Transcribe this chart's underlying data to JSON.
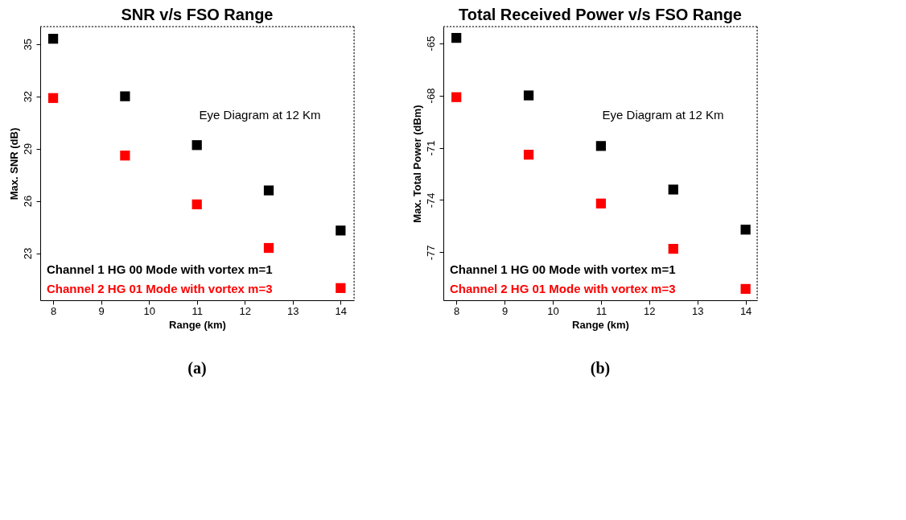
{
  "chart_data": [
    {
      "type": "scatter",
      "title": "SNR v/s FSO Range",
      "xlabel": "Range (km)",
      "ylabel": "Max. SNR (dB)",
      "x": [
        8,
        9.5,
        11,
        12.5,
        14
      ],
      "series": [
        {
          "name": "Channel 1 HG 00 Mode with vortex m=1",
          "color": "#000000",
          "values": [
            35.3,
            32.0,
            29.2,
            26.6,
            24.3
          ]
        },
        {
          "name": "Channel 2 HG 01 Mode with vortex m=3",
          "color": "#ff0000",
          "values": [
            31.9,
            28.6,
            25.8,
            23.3,
            21.0
          ]
        }
      ],
      "xlim": [
        7.73,
        14.28
      ],
      "xticks": [
        8,
        9,
        10,
        11,
        12,
        13,
        14
      ],
      "ylim": [
        20.3,
        36.0
      ],
      "yticks": [
        23,
        26,
        29,
        32,
        35
      ],
      "marker": "square",
      "grid": false,
      "legend": "bottom left",
      "annotations": [
        "Eye Diagram at 12 Km",
        "(a)"
      ]
    },
    {
      "type": "scatter",
      "title": "Total Received Power v/s FSO Range",
      "xlabel": "Range (km)",
      "ylabel": "Max. Total Power (dBm)",
      "x": [
        8,
        9.5,
        11,
        12.5,
        14
      ],
      "series": [
        {
          "name": "Channel 1 HG 00 Mode with vortex m=1",
          "color": "#000000",
          "values": [
            -64.7,
            -68.0,
            -70.9,
            -73.4,
            -75.7
          ]
        },
        {
          "name": "Channel 2 HG 01 Mode with vortex m=3",
          "color": "#ff0000",
          "values": [
            -68.1,
            -71.4,
            -74.2,
            -76.8,
            -79.1
          ]
        }
      ],
      "xlim": [
        7.73,
        14.24
      ],
      "xticks": [
        8,
        9,
        10,
        11,
        12,
        13,
        14
      ],
      "ylim": [
        -79.75,
        -64.05
      ],
      "yticks": [
        -77,
        -74,
        -71,
        -68,
        -65
      ],
      "marker": "square",
      "grid": false,
      "legend": "bottom left",
      "annotations": [
        "Eye Diagram at 12 Km",
        "(b)"
      ]
    }
  ]
}
